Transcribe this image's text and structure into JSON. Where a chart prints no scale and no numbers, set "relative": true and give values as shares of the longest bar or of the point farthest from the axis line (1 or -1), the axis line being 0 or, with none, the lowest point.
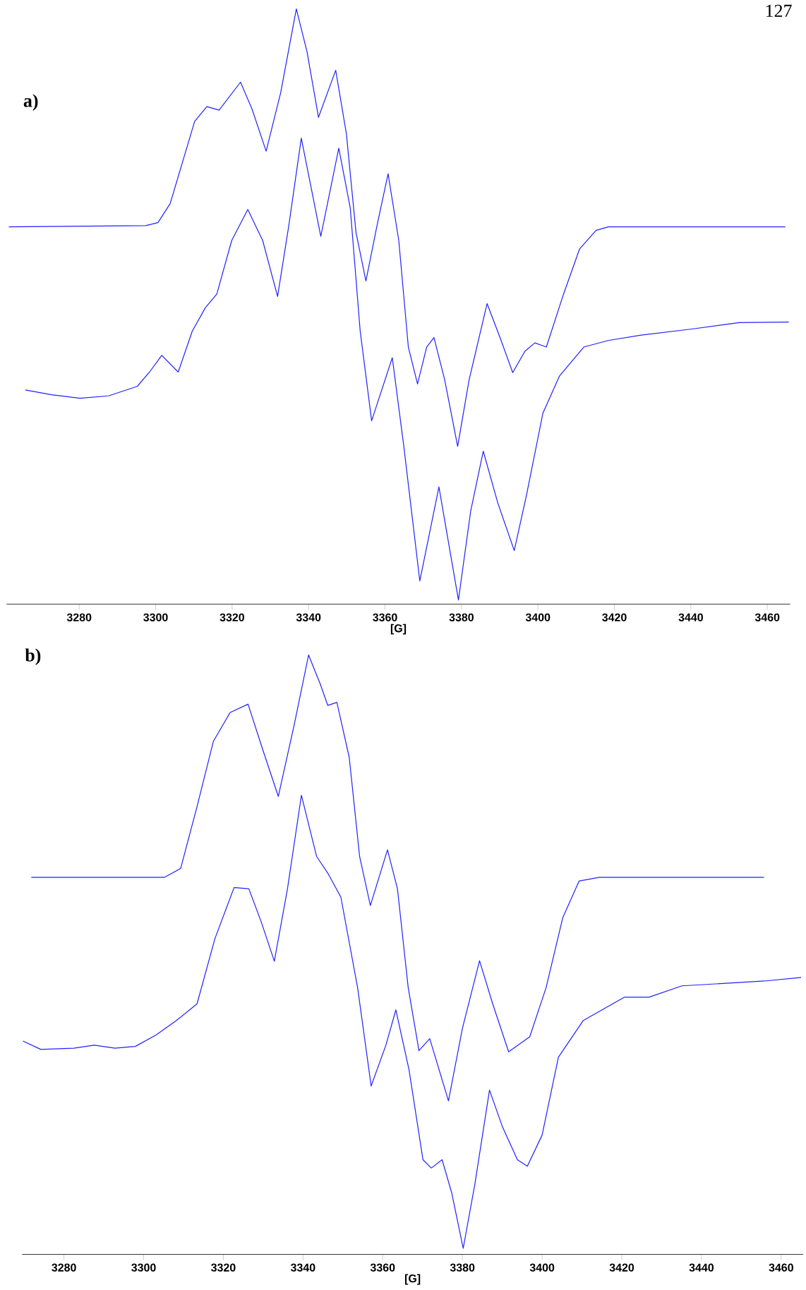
{
  "chart_data": [
    {
      "type": "line",
      "title": "a)",
      "xlabel": "[G]",
      "relative": true,
      "annotations": [
        "127"
      ],
      "xlim": [
        3261,
        3466
      ],
      "xticks": [
        3280,
        3300,
        3320,
        3340,
        3360,
        3380,
        3400,
        3420,
        3440,
        3460
      ],
      "series": [
        {
          "color": "#2020ff",
          "x": [
            3261.6,
            3297.4,
            3300.6,
            3303.8,
            3307.0,
            3310.2,
            3313.4,
            3316.6,
            3322.2,
            3325.2,
            3328.9,
            3332.7,
            3336.8,
            3339.6,
            3342.6,
            3347.1,
            3349.9,
            3352.4,
            3355.0,
            3358.0,
            3360.8,
            3363.6,
            3366.1,
            3368.5,
            3370.9,
            3372.8,
            3375.6,
            3379.0,
            3382.0,
            3386.7,
            3390.2,
            3393.4,
            3396.6,
            3399.2,
            3402.2,
            3406.7,
            3410.9,
            3415.2,
            3418.4,
            3464.7
          ],
          "values": [
            0.634,
            0.636,
            0.641,
            0.673,
            0.742,
            0.811,
            0.836,
            0.83,
            0.877,
            0.832,
            0.761,
            0.859,
            1.0,
            0.928,
            0.818,
            0.897,
            0.79,
            0.625,
            0.543,
            0.639,
            0.723,
            0.611,
            0.432,
            0.37,
            0.432,
            0.448,
            0.377,
            0.265,
            0.377,
            0.505,
            0.446,
            0.389,
            0.425,
            0.439,
            0.432,
            0.521,
            0.597,
            0.628,
            0.634,
            0.634
          ]
        },
        {
          "color": "#2020ff",
          "x": [
            3265.9,
            3272.7,
            3280.2,
            3287.7,
            3295.2,
            3298.4,
            3301.6,
            3305.9,
            3309.6,
            3313.0,
            3316.0,
            3319.9,
            3324.1,
            3328.0,
            3331.9,
            3334.9,
            3338.1,
            3343.2,
            3347.9,
            3350.9,
            3353.5,
            3356.5,
            3361.9,
            3364.9,
            3369.1,
            3374.1,
            3379.2,
            3382.4,
            3385.7,
            3389.5,
            3393.8,
            3397.0,
            3401.3,
            3405.6,
            3412.0,
            3418.4,
            3427.0,
            3439.9,
            3452.7,
            3465.6
          ],
          "values": [
            0.36,
            0.352,
            0.346,
            0.35,
            0.366,
            0.39,
            0.418,
            0.39,
            0.459,
            0.498,
            0.521,
            0.611,
            0.663,
            0.611,
            0.517,
            0.639,
            0.783,
            0.618,
            0.766,
            0.666,
            0.459,
            0.308,
            0.414,
            0.266,
            0.039,
            0.197,
            0.007,
            0.156,
            0.257,
            0.17,
            0.09,
            0.183,
            0.321,
            0.383,
            0.432,
            0.443,
            0.452,
            0.462,
            0.473,
            0.474
          ]
        }
      ]
    },
    {
      "type": "line",
      "title": "b)",
      "xlabel": "[G]",
      "relative": true,
      "xlim": [
        3269.5,
        3465.5
      ],
      "xticks": [
        3280,
        3300,
        3320,
        3340,
        3360,
        3380,
        3400,
        3420,
        3440,
        3460
      ],
      "series": [
        {
          "color": "#2020ff",
          "x": [
            3271.8,
            3305.2,
            3309.3,
            3313.4,
            3317.5,
            3321.7,
            3326.2,
            3329.9,
            3333.8,
            3337.8,
            3341.4,
            3344.3,
            3346.2,
            3348.5,
            3351.6,
            3354.2,
            3356.9,
            3361.2,
            3363.7,
            3366.4,
            3369.1,
            3371.8,
            3376.5,
            3380.0,
            3384.3,
            3387.6,
            3391.6,
            3396.9,
            3401.0,
            3405.2,
            3409.3,
            3414.4,
            3455.7
          ],
          "values": [
            0.629,
            0.629,
            0.644,
            0.747,
            0.856,
            0.904,
            0.918,
            0.842,
            0.764,
            0.884,
            1.0,
            0.952,
            0.916,
            0.921,
            0.829,
            0.664,
            0.582,
            0.675,
            0.61,
            0.445,
            0.34,
            0.36,
            0.256,
            0.377,
            0.49,
            0.418,
            0.338,
            0.363,
            0.445,
            0.562,
            0.623,
            0.629,
            0.629
          ]
        },
        {
          "color": "#2020ff",
          "x": [
            3269.7,
            3274.2,
            3282.5,
            3287.6,
            3292.8,
            3297.9,
            3303.1,
            3308.2,
            3313.4,
            3317.9,
            3322.7,
            3326.4,
            3329.5,
            3332.8,
            3336.1,
            3339.6,
            3343.4,
            3346.4,
            3349.5,
            3353.7,
            3357.1,
            3360.8,
            3363.3,
            3366.6,
            3370.1,
            3372.2,
            3374.9,
            3377.3,
            3380.2,
            3383.1,
            3386.8,
            3390.1,
            3393.8,
            3396.3,
            3400.0,
            3404.1,
            3410.3,
            3420.6,
            3426.8,
            3435.1,
            3445.4,
            3455.7,
            3465.0
          ],
          "values": [
            0.356,
            0.342,
            0.344,
            0.349,
            0.344,
            0.347,
            0.366,
            0.39,
            0.418,
            0.527,
            0.612,
            0.61,
            0.555,
            0.489,
            0.61,
            0.766,
            0.664,
            0.634,
            0.596,
            0.445,
            0.281,
            0.349,
            0.408,
            0.308,
            0.158,
            0.144,
            0.158,
            0.103,
            0.01,
            0.116,
            0.274,
            0.212,
            0.158,
            0.147,
            0.199,
            0.329,
            0.39,
            0.429,
            0.429,
            0.448,
            0.452,
            0.456,
            0.462
          ]
        }
      ]
    }
  ]
}
